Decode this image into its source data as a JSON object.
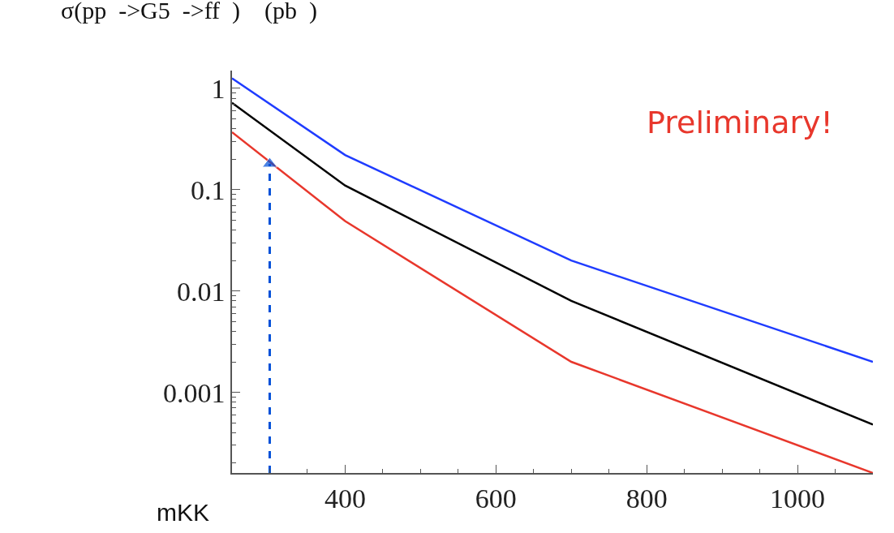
{
  "chart_data": {
    "type": "line",
    "ylabel": "σ(pp  ->G5  ->ff  )    (pb  )",
    "xlabel": "mKK",
    "annotations": [
      "Preliminary!"
    ],
    "x": [
      250,
      400,
      700,
      1100
    ],
    "series": [
      {
        "color": "#1f3cff",
        "values": [
          1.26,
          0.22,
          0.02,
          0.002
        ]
      },
      {
        "color": "#000000",
        "values": [
          0.72,
          0.11,
          0.008,
          0.00048
        ]
      },
      {
        "color": "#e8372c",
        "values": [
          0.37,
          0.049,
          0.002,
          0.00016
        ]
      },
      {
        "color": "#0050d8",
        "x": [
          300,
          300
        ],
        "values": [
          0.00016,
          0.18
        ],
        "line_style": "dashed",
        "marker": "triangle"
      }
    ],
    "log": "y",
    "xlim": [
      250,
      1100
    ],
    "xticks": [
      400,
      600,
      800,
      1000
    ],
    "ylim": [
      0.00016,
      1.5
    ],
    "yticks": [
      1,
      0.1,
      0.01,
      0.001
    ],
    "marker": "none",
    "line_style": "solid"
  }
}
